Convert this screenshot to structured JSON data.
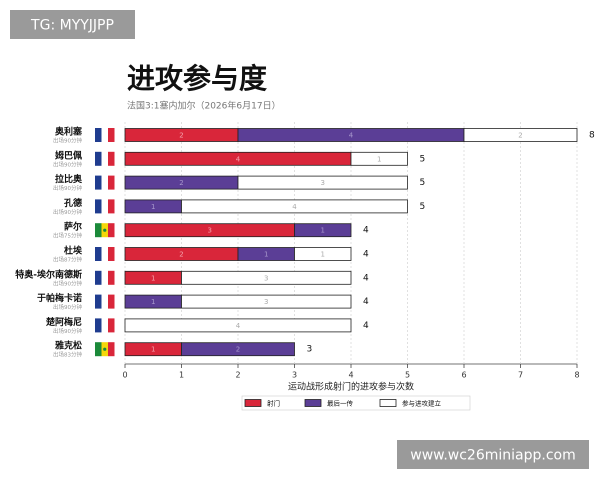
{
  "watermarks": [
    "TG: MYYJJPP",
    "www.wc26miniapp.com"
  ],
  "chart_data": {
    "type": "bar",
    "orientation": "horizontal",
    "stacked": true,
    "title": "进攻参与度",
    "subtitle": "法国3:1塞内加尔（2026年6月17日）",
    "xlabel": "运动战形成射门的进攻参与次数",
    "categories": [
      "奥利塞",
      "姆巴佩",
      "拉比奥",
      "孔德",
      "萨尔",
      "杜埃",
      "特奥-埃尔南德斯",
      "于帕梅卡诺",
      "楚阿梅尼",
      "雅克松"
    ],
    "minutes": [
      "出场90分钟",
      "出场90分钟",
      "出场90分钟",
      "出场90分钟",
      "出场75分钟",
      "出场87分钟",
      "出场90分钟",
      "出场90分钟",
      "出场90分钟",
      "出场83分钟"
    ],
    "series": [
      {
        "name": "射门",
        "color": "#d9263a",
        "values": [
          2,
          4,
          0,
          0,
          3,
          2,
          1,
          0,
          0,
          1
        ]
      },
      {
        "name": "最后一传",
        "color": "#5b3e96",
        "values": [
          4,
          0,
          2,
          1,
          1,
          1,
          0,
          1,
          0,
          2
        ]
      },
      {
        "name": "参与进攻建立",
        "color": "#ffffff",
        "values": [
          2,
          1,
          3,
          4,
          0,
          1,
          3,
          3,
          4,
          0
        ]
      }
    ],
    "totals": [
      8,
      5,
      5,
      5,
      4,
      4,
      4,
      4,
      4,
      3
    ],
    "xlim": [
      0,
      8
    ],
    "xticks": [
      0,
      1,
      2,
      3,
      4,
      5,
      6,
      7,
      8
    ]
  }
}
